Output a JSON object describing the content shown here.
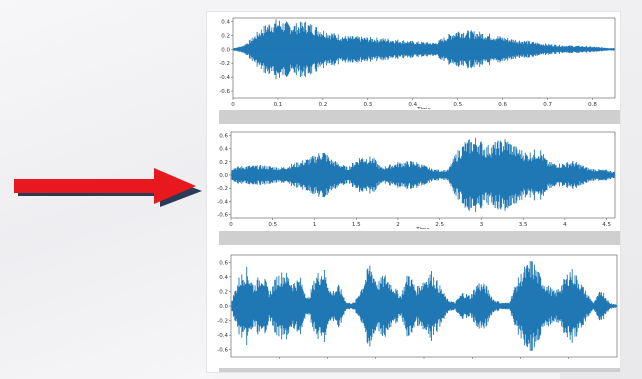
{
  "chart_data": [
    {
      "type": "area",
      "subtype": "waveform",
      "xlabel": "Time",
      "ylabel": "",
      "xlim": [
        0,
        0.85
      ],
      "ylim": [
        -0.7,
        0.45
      ],
      "x_ticks": [
        "0",
        "0.1",
        "0.2",
        "0.3",
        "0.4",
        "0.5",
        "0.6",
        "0.7",
        "0.8"
      ],
      "y_ticks": [
        "0.4",
        "0.2",
        "0.0",
        "-0.2",
        "-0.4",
        "-0.6"
      ],
      "color": "#1f77b4",
      "envelope": {
        "x": [
          0,
          0.02,
          0.04,
          0.06,
          0.08,
          0.1,
          0.12,
          0.14,
          0.16,
          0.18,
          0.2,
          0.22,
          0.25,
          0.3,
          0.35,
          0.4,
          0.45,
          0.48,
          0.5,
          0.52,
          0.55,
          0.58,
          0.62,
          0.66,
          0.7,
          0.74,
          0.78,
          0.82,
          0.85
        ],
        "amp": [
          0.02,
          0.05,
          0.15,
          0.3,
          0.4,
          0.45,
          0.4,
          0.38,
          0.42,
          0.36,
          0.3,
          0.25,
          0.2,
          0.18,
          0.16,
          0.12,
          0.1,
          0.22,
          0.3,
          0.28,
          0.26,
          0.22,
          0.16,
          0.12,
          0.08,
          0.06,
          0.05,
          0.03,
          0.02
        ]
      }
    },
    {
      "type": "area",
      "subtype": "waveform",
      "xlabel": "Time",
      "ylabel": "",
      "xlim": [
        0,
        4.6
      ],
      "ylim": [
        -0.65,
        0.65
      ],
      "x_ticks": [
        "0",
        "0.5",
        "1",
        "1.5",
        "2",
        "2.5",
        "3",
        "3.5",
        "4",
        "4.5"
      ],
      "y_ticks": [
        "0.6",
        "0.4",
        "0.2",
        "0.0",
        "-0.2",
        "-0.4",
        "-0.6"
      ],
      "color": "#1f77b4",
      "envelope": {
        "x": [
          0,
          0.2,
          0.4,
          0.6,
          0.8,
          1.0,
          1.1,
          1.2,
          1.4,
          1.55,
          1.7,
          1.8,
          2.0,
          2.2,
          2.4,
          2.5,
          2.6,
          2.7,
          2.8,
          2.95,
          3.05,
          3.15,
          3.3,
          3.4,
          3.55,
          3.7,
          3.8,
          3.95,
          4.1,
          4.3,
          4.5,
          4.6
        ],
        "amp": [
          0.12,
          0.15,
          0.15,
          0.12,
          0.2,
          0.3,
          0.4,
          0.25,
          0.12,
          0.3,
          0.28,
          0.12,
          0.2,
          0.22,
          0.1,
          0.08,
          0.08,
          0.35,
          0.52,
          0.6,
          0.45,
          0.5,
          0.58,
          0.45,
          0.35,
          0.42,
          0.2,
          0.18,
          0.22,
          0.1,
          0.08,
          0.05
        ]
      }
    },
    {
      "type": "area",
      "subtype": "waveform",
      "xlabel": "",
      "ylabel": "",
      "xlim": [
        0,
        1
      ],
      "ylim": [
        -0.7,
        0.7
      ],
      "x_ticks": [],
      "y_ticks": [
        "0.6",
        "0.4",
        "0.2",
        "0.0",
        "-0.2",
        "-0.4",
        "-0.6"
      ],
      "color": "#1f77b4",
      "envelope": {
        "x": [
          0,
          0.02,
          0.04,
          0.06,
          0.08,
          0.1,
          0.12,
          0.14,
          0.16,
          0.18,
          0.2,
          0.22,
          0.24,
          0.26,
          0.28,
          0.3,
          0.32,
          0.34,
          0.36,
          0.38,
          0.4,
          0.42,
          0.44,
          0.46,
          0.48,
          0.5,
          0.52,
          0.54,
          0.56,
          0.58,
          0.6,
          0.62,
          0.64,
          0.66,
          0.68,
          0.7,
          0.72,
          0.74,
          0.76,
          0.78,
          0.8,
          0.82,
          0.84,
          0.86,
          0.88,
          0.9,
          0.92,
          0.94,
          0.96,
          0.98,
          1.0
        ],
        "amp": [
          0.05,
          0.4,
          0.55,
          0.3,
          0.5,
          0.2,
          0.45,
          0.5,
          0.35,
          0.4,
          0.1,
          0.45,
          0.55,
          0.2,
          0.3,
          0.05,
          0.05,
          0.3,
          0.62,
          0.35,
          0.45,
          0.3,
          0.15,
          0.5,
          0.25,
          0.4,
          0.5,
          0.3,
          0.1,
          0.05,
          0.2,
          0.15,
          0.35,
          0.3,
          0.1,
          0.05,
          0.05,
          0.35,
          0.55,
          0.66,
          0.45,
          0.3,
          0.2,
          0.35,
          0.55,
          0.4,
          0.2,
          0.05,
          0.25,
          0.05,
          0.02
        ]
      }
    }
  ]
}
